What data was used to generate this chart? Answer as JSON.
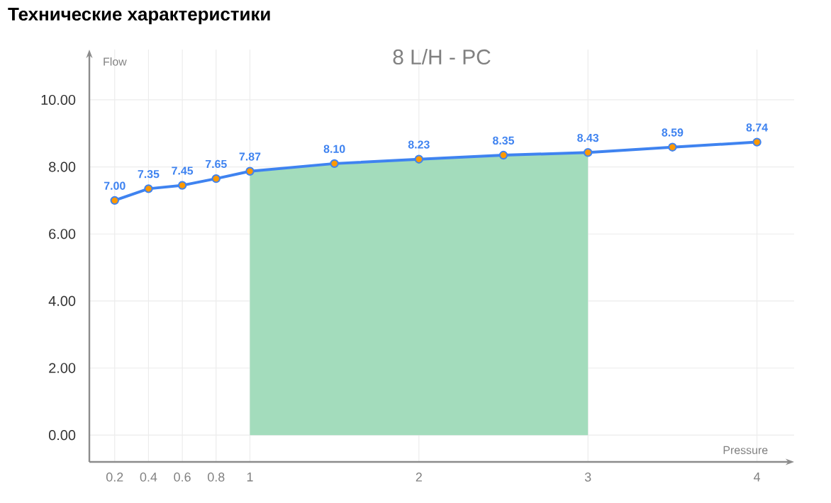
{
  "chart_data": {
    "type": "line",
    "title": "Технические характеристики",
    "subtitle": "8 L/H - PC",
    "xlabel": "Pressure",
    "ylabel": "Flow",
    "x": [
      0.2,
      0.4,
      0.6,
      0.8,
      1,
      1.5,
      2,
      2.5,
      3,
      3.5,
      4
    ],
    "series": [
      {
        "color": "#3f83f0",
        "marker": "circle",
        "values": [
          7.0,
          7.35,
          7.45,
          7.65,
          7.87,
          8.1,
          8.23,
          8.35,
          8.43,
          8.59,
          8.74
        ],
        "value_labels": [
          "7.00",
          "7.35",
          "7.45",
          "7.65",
          "7.87",
          "8.10",
          "8.23",
          "8.35",
          "8.43",
          "8.59",
          "8.74"
        ]
      },
      {
        "type": "area",
        "color": "#a3dcbc",
        "x": [
          1,
          1.5,
          2,
          2.5,
          3
        ],
        "values": [
          7.87,
          8.1,
          8.23,
          8.35,
          8.43
        ]
      }
    ],
    "xlim": [
      0.05,
      4.22
    ],
    "ylim": [
      -0.8,
      11.5
    ],
    "xticks": [
      0.2,
      0.4,
      0.6,
      0.8,
      1,
      2,
      3,
      4
    ],
    "yticks": [
      {
        "value": 0,
        "label": "0.00"
      },
      {
        "value": 2,
        "label": "2.00"
      },
      {
        "value": 4,
        "label": "4.00"
      },
      {
        "value": 6,
        "label": "6.00"
      },
      {
        "value": 8,
        "label": "8.00"
      },
      {
        "value": 10,
        "label": "10.00"
      }
    ],
    "grid": true,
    "line_style": "solid"
  }
}
